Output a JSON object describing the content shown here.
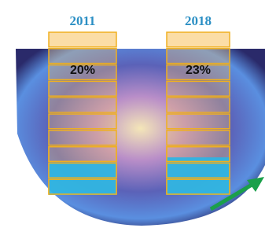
{
  "chart_data": {
    "type": "pictorial-bar",
    "categories": [
      "2011",
      "2018"
    ],
    "values": [
      20,
      23
    ],
    "value_labels": [
      "20%",
      "23%"
    ],
    "ylim": [
      0,
      100
    ],
    "color": "#29b6e6"
  }
}
